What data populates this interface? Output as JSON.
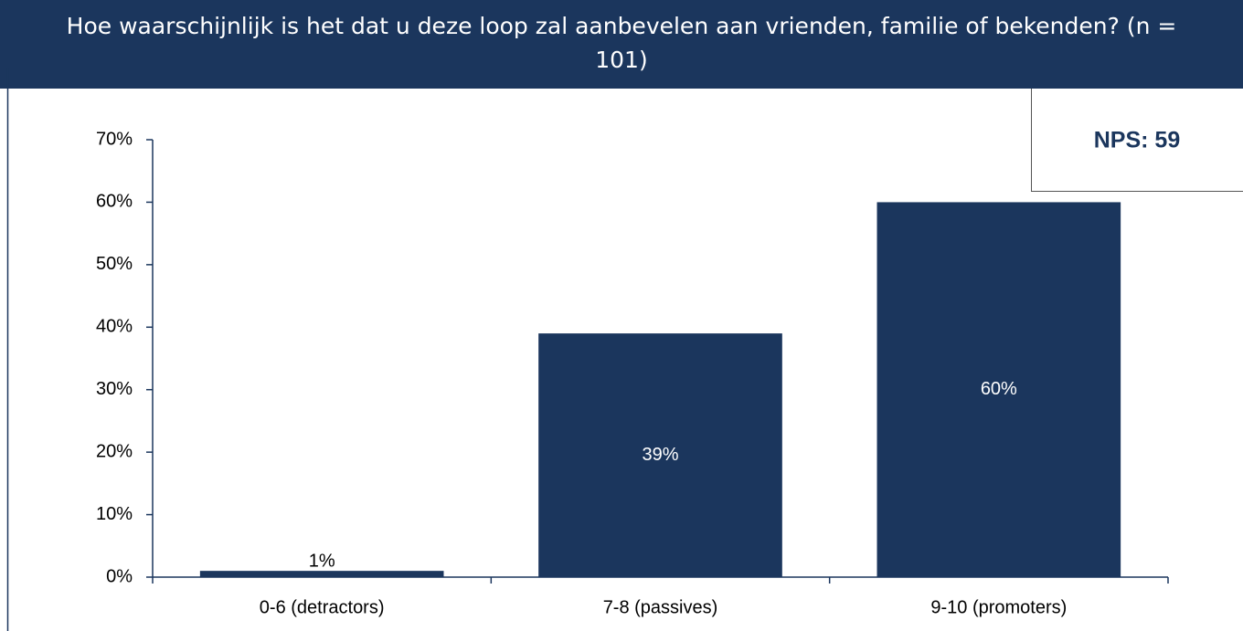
{
  "chart_data": {
    "type": "bar",
    "title": "Hoe waarschijnlijk is het dat u deze loop zal aanbevelen aan vrienden, familie of bekenden? (n = 101)",
    "annotation": "NPS: 59",
    "categories": [
      "0-6 (detractors)",
      "7-8 (passives)",
      "9-10 (promoters)"
    ],
    "values": [
      1,
      39,
      60
    ],
    "value_labels": [
      "1%",
      "39%",
      "60%"
    ],
    "color": "#1b365d",
    "ylim": [
      0,
      70
    ],
    "yticks": [
      {
        "value": 0,
        "label": "0%"
      },
      {
        "value": 10,
        "label": "10%"
      },
      {
        "value": 20,
        "label": "20%"
      },
      {
        "value": 30,
        "label": "30%"
      },
      {
        "value": 40,
        "label": "40%"
      },
      {
        "value": 50,
        "label": "50%"
      },
      {
        "value": 60,
        "label": "60%"
      },
      {
        "value": 70,
        "label": "70%"
      }
    ]
  }
}
